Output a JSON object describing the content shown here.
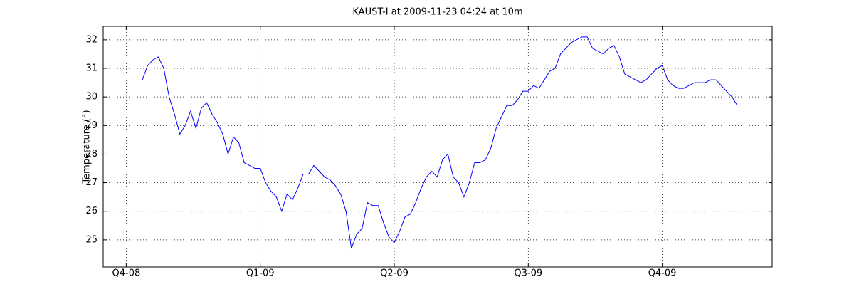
{
  "chart_data": {
    "type": "line",
    "title": "KAUST-I at 2009-11-23 04:24 at 10m",
    "y_label": "Temperature (°)",
    "color": "#0000ff",
    "grid": true,
    "xlim": [
      2008.707,
      2009.955
    ],
    "ylim": [
      24.05,
      32.47
    ],
    "xticks": [
      {
        "value": 2008.75,
        "label": "Q4-08"
      },
      {
        "value": 2009.0,
        "label": "Q1-09"
      },
      {
        "value": 2009.25,
        "label": "Q2-09"
      },
      {
        "value": 2009.5,
        "label": "Q3-09"
      },
      {
        "value": 2009.75,
        "label": "Q4-09"
      }
    ],
    "yticks": [
      25,
      26,
      27,
      28,
      29,
      30,
      31,
      32
    ],
    "x": [
      2008.78,
      2008.79,
      2008.8,
      2008.81,
      2008.82,
      2008.83,
      2008.84,
      2008.85,
      2008.86,
      2008.87,
      2008.88,
      2008.89,
      2008.9,
      2008.91,
      2008.92,
      2008.93,
      2008.94,
      2008.95,
      2008.96,
      2008.97,
      2008.98,
      2008.99,
      2009.0,
      2009.01,
      2009.02,
      2009.03,
      2009.04,
      2009.05,
      2009.06,
      2009.07,
      2009.08,
      2009.09,
      2009.1,
      2009.11,
      2009.12,
      2009.13,
      2009.14,
      2009.15,
      2009.16,
      2009.17,
      2009.18,
      2009.19,
      2009.2,
      2009.21,
      2009.22,
      2009.23,
      2009.24,
      2009.25,
      2009.26,
      2009.27,
      2009.28,
      2009.29,
      2009.3,
      2009.31,
      2009.32,
      2009.33,
      2009.34,
      2009.35,
      2009.36,
      2009.37,
      2009.38,
      2009.39,
      2009.4,
      2009.41,
      2009.42,
      2009.43,
      2009.44,
      2009.45,
      2009.46,
      2009.47,
      2009.48,
      2009.49,
      2009.5,
      2009.51,
      2009.52,
      2009.53,
      2009.54,
      2009.55,
      2009.56,
      2009.57,
      2009.58,
      2009.59,
      2009.6,
      2009.61,
      2009.62,
      2009.63,
      2009.64,
      2009.65,
      2009.66,
      2009.67,
      2009.68,
      2009.69,
      2009.7,
      2009.71,
      2009.72,
      2009.73,
      2009.74,
      2009.75,
      2009.76,
      2009.77,
      2009.78,
      2009.79,
      2009.8,
      2009.81,
      2009.82,
      2009.83,
      2009.84,
      2009.85,
      2009.86,
      2009.87,
      2009.88,
      2009.89
    ],
    "values": [
      30.6,
      31.1,
      31.3,
      31.4,
      31.0,
      30.0,
      29.4,
      28.7,
      29.0,
      29.5,
      28.9,
      29.6,
      29.8,
      29.4,
      29.1,
      28.7,
      28.0,
      28.6,
      28.4,
      27.7,
      27.6,
      27.5,
      27.5,
      27.0,
      26.7,
      26.5,
      26.0,
      26.6,
      26.4,
      26.8,
      27.3,
      27.3,
      27.6,
      27.4,
      27.2,
      27.1,
      26.9,
      26.6,
      26.0,
      24.7,
      25.2,
      25.4,
      26.3,
      26.2,
      26.2,
      25.6,
      25.1,
      24.9,
      25.3,
      25.8,
      25.9,
      26.3,
      26.8,
      27.2,
      27.4,
      27.2,
      27.8,
      28.0,
      27.2,
      27.0,
      26.5,
      27.0,
      27.7,
      27.7,
      27.8,
      28.2,
      28.9,
      29.3,
      29.7,
      29.7,
      29.9,
      30.2,
      30.2,
      30.4,
      30.3,
      30.6,
      30.9,
      31.0,
      31.5,
      31.7,
      31.9,
      32.0,
      32.1,
      32.1,
      31.7,
      31.6,
      31.5,
      31.7,
      31.8,
      31.4,
      30.8,
      30.7,
      30.6,
      30.5,
      30.6,
      30.8,
      31.0,
      31.1,
      30.6,
      30.4,
      30.3,
      30.3,
      30.4,
      30.5,
      30.5,
      30.5,
      30.6,
      30.6,
      30.4,
      30.2,
      30.0,
      29.7
    ]
  }
}
